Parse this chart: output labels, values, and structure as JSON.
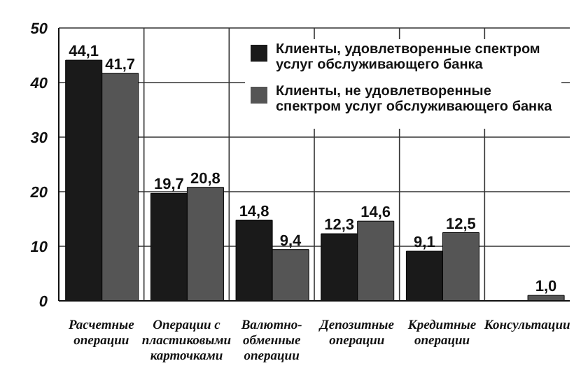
{
  "chart_data": {
    "type": "bar",
    "categories": [
      "Расчетные операции",
      "Операции с пластиковыми карточками",
      "Валютно-обменные операции",
      "Депозитные операции",
      "Кредитные операции",
      "Консультации"
    ],
    "series": [
      {
        "name": "Клиенты, удовлетворенные спектром услуг обслуживающего банка",
        "color": "#1a1a1a",
        "values": [
          44.1,
          19.7,
          14.8,
          12.3,
          9.1,
          null
        ],
        "value_labels": [
          "44,1",
          "19,7",
          "14,8",
          "12,3",
          "9,1",
          null
        ]
      },
      {
        "name": "Клиенты, не удовлетворенные спектром услуг обслуживающего банка",
        "color": "#555555",
        "values": [
          41.7,
          20.8,
          9.4,
          14.6,
          12.5,
          1.0
        ],
        "value_labels": [
          "41,7",
          "20,8",
          "9,4",
          "14,6",
          "12,5",
          "1,0"
        ]
      }
    ],
    "ylim": [
      0,
      50
    ],
    "yticks": [
      0,
      10,
      20,
      30,
      40,
      50
    ],
    "grid": true,
    "legend": "top right"
  }
}
